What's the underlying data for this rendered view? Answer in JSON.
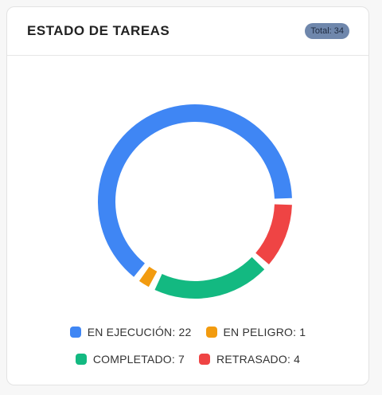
{
  "card": {
    "title": "ESTADO DE TAREAS",
    "total_badge": "Total: 34"
  },
  "chart_data": {
    "type": "pie",
    "categories": [
      "EN EJECUCIÓN",
      "EN PELIGRO",
      "COMPLETADO",
      "RETRASADO"
    ],
    "values": [
      22,
      1,
      7,
      4
    ],
    "colors": [
      "#3f86f4",
      "#f29b0f",
      "#13b981",
      "#ef4444"
    ],
    "title": "",
    "donut": true
  },
  "legend": [
    {
      "text": "EN EJECUCIÓN: 22",
      "color": "#3f86f4"
    },
    {
      "text": "EN PELIGRO: 1",
      "color": "#f29b0f"
    },
    {
      "text": "COMPLETADO: 7",
      "color": "#13b981"
    },
    {
      "text": "RETRASADO: 4",
      "color": "#ef4444"
    }
  ]
}
